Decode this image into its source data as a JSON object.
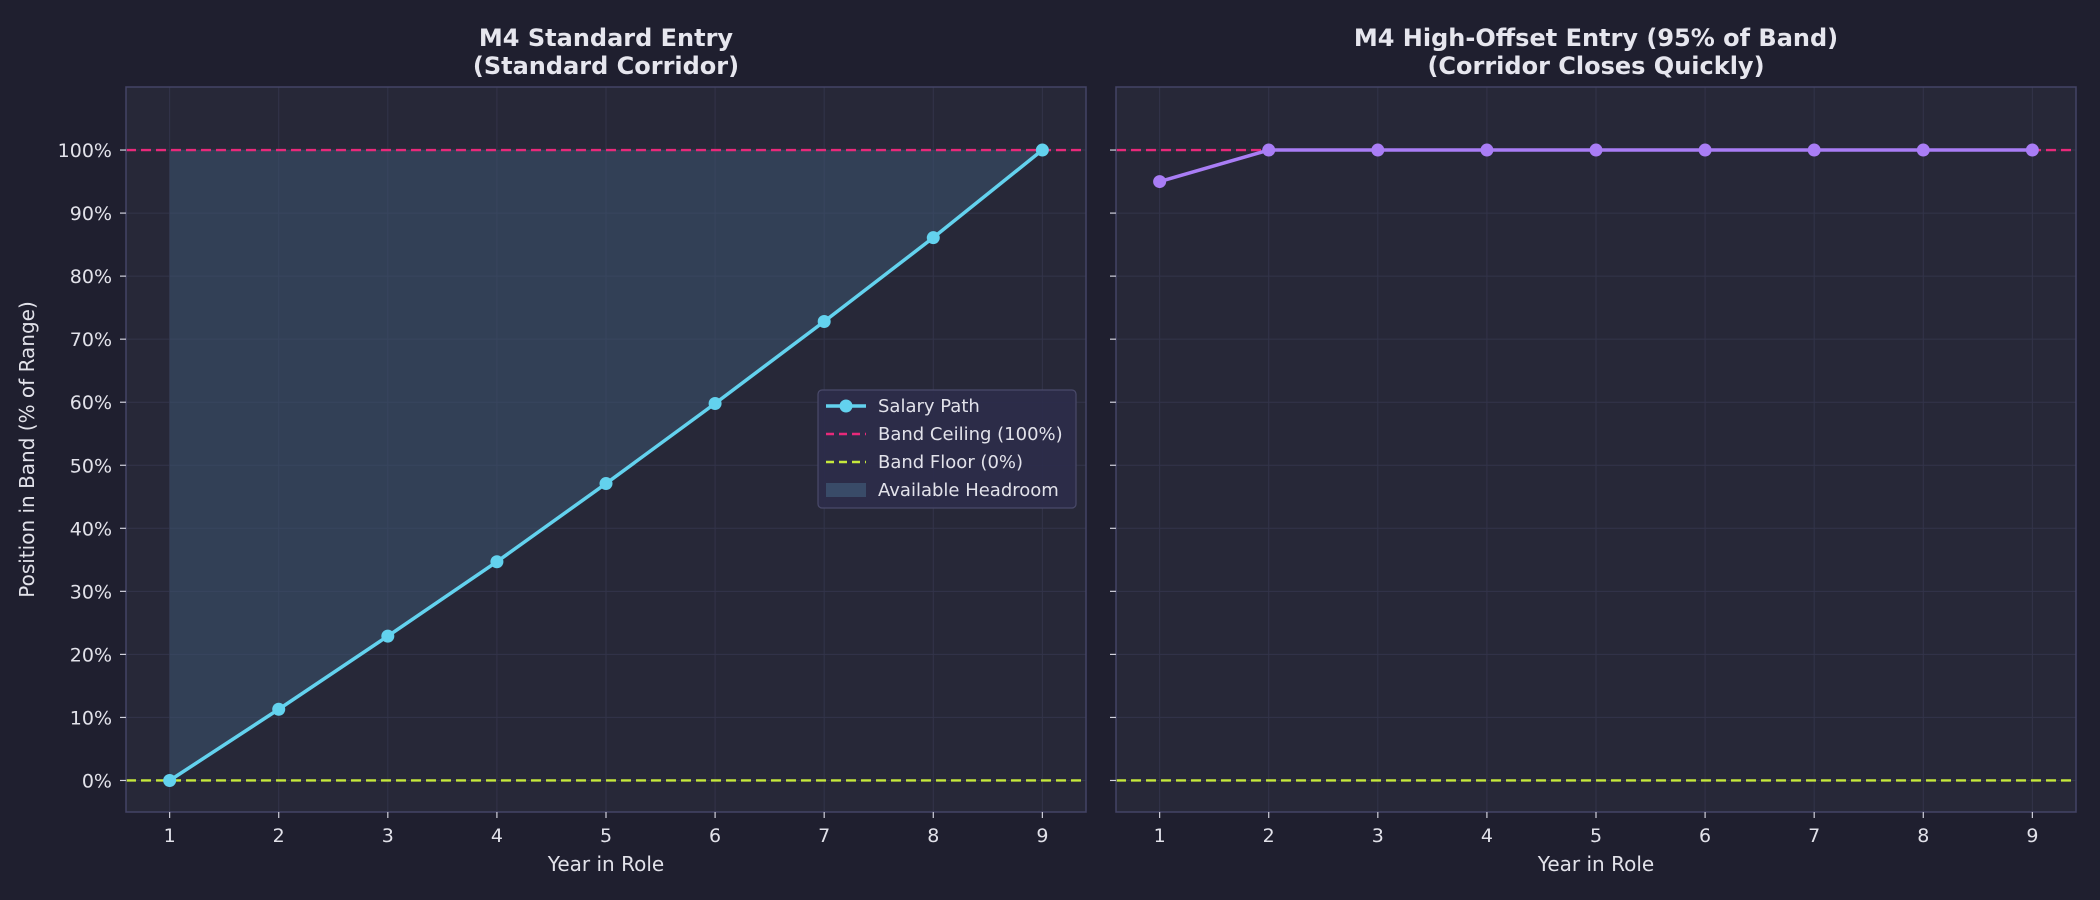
{
  "colors": {
    "background": "#1f1f2f",
    "panel": "#272838",
    "panel_border": "#444466",
    "grid": "#33344a",
    "salary_path": "#63d2ee",
    "high_offset_path": "#a97df5",
    "ceiling": "#e8297a",
    "floor": "#c6e83c",
    "headroom": "#3d5470",
    "legend_bg": "#2d2d4a",
    "legend_border": "#4a4a6a"
  },
  "chart_data": [
    {
      "type": "line",
      "title": "M4 Standard Entry\n(Standard Corridor)",
      "xlabel": "Year in Role",
      "ylabel": "Position in Band (% of Range)",
      "xlim": [
        0.6,
        9.4
      ],
      "ylim": [
        -5,
        110
      ],
      "xticks": [
        1,
        2,
        3,
        4,
        5,
        6,
        7,
        8,
        9
      ],
      "yticks": [
        0,
        10,
        20,
        30,
        40,
        50,
        60,
        70,
        80,
        90,
        100
      ],
      "ytick_labels": [
        "0%",
        "10%",
        "20%",
        "30%",
        "40%",
        "50%",
        "60%",
        "70%",
        "80%",
        "90%",
        "100%"
      ],
      "grid": true,
      "series": [
        {
          "name": "Salary Path",
          "x": [
            1,
            2,
            3,
            4,
            5,
            6,
            7,
            8,
            9
          ],
          "y": [
            0,
            11.3,
            22.9,
            34.7,
            47.1,
            59.8,
            72.8,
            86.1,
            100
          ],
          "color": "#63d2ee",
          "marker": "circle"
        }
      ],
      "reference_lines": [
        {
          "name": "Band Ceiling (100%)",
          "y": 100,
          "color": "#e8297a",
          "style": "dashed"
        },
        {
          "name": "Band Floor (0%)",
          "y": 0,
          "color": "#c6e83c",
          "style": "dashed"
        }
      ],
      "fill": {
        "name": "Available Headroom",
        "between": "series-and-ceiling",
        "color": "#3d5470"
      },
      "legend": {
        "placement": "center-right",
        "entries": [
          "Salary Path",
          "Band Ceiling (100%)",
          "Band Floor (0%)",
          "Available Headroom"
        ]
      }
    },
    {
      "type": "line",
      "title": "M4 High-Offset Entry (95% of Band)\n(Corridor Closes Quickly)",
      "xlabel": "Year in Role",
      "ylabel": "",
      "xlim": [
        0.6,
        9.4
      ],
      "ylim": [
        -5,
        110
      ],
      "xticks": [
        1,
        2,
        3,
        4,
        5,
        6,
        7,
        8,
        9
      ],
      "yticks": [
        0,
        10,
        20,
        30,
        40,
        50,
        60,
        70,
        80,
        90,
        100
      ],
      "ytick_labels": [],
      "grid": true,
      "series": [
        {
          "name": "",
          "x": [
            1,
            2,
            3,
            4,
            5,
            6,
            7,
            8,
            9
          ],
          "y": [
            95,
            100,
            100,
            100,
            100,
            100,
            100,
            100,
            100
          ],
          "color": "#a97df5",
          "marker": "circle"
        }
      ],
      "reference_lines": [
        {
          "name": "",
          "y": 100,
          "color": "#e8297a",
          "style": "dashed"
        },
        {
          "name": "",
          "y": 0,
          "color": "#c6e83c",
          "style": "dashed"
        }
      ]
    }
  ]
}
